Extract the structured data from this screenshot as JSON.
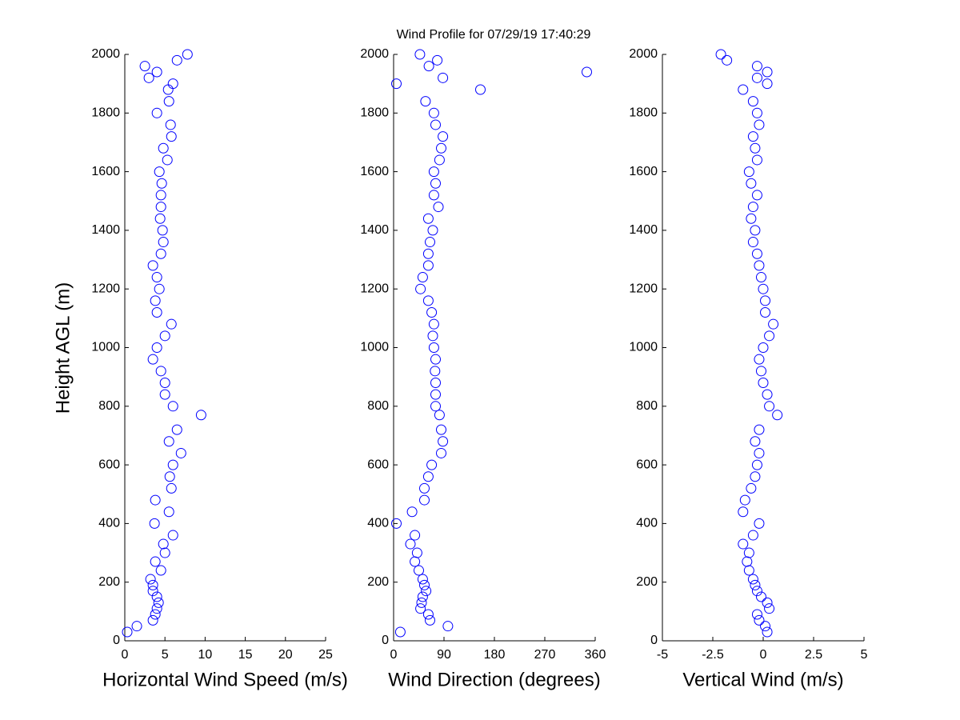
{
  "chart_data": [
    {
      "type": "scatter",
      "title": "Wind Profile for  07/29/19 17:40:29",
      "ylabel": "Height AGL (m)",
      "xlabel": "Horizontal Wind Speed (m/s)",
      "color": "#0000ff",
      "xlim": [
        0,
        25
      ],
      "xticks": [
        0,
        5,
        10,
        15,
        20,
        25
      ],
      "ylim": [
        0,
        2000
      ],
      "yticks": [
        0,
        200,
        400,
        600,
        800,
        1000,
        1200,
        1400,
        1600,
        1800,
        2000
      ],
      "x": [
        0.3,
        1.5,
        3.5,
        3.8,
        4,
        4.2,
        4,
        3.5,
        3.5,
        3.2,
        4.5,
        3.8,
        5,
        4.8,
        6,
        3.7,
        5.5,
        3.8,
        5.8,
        5.6,
        6,
        7,
        5.5,
        6.5,
        9.5,
        6,
        5,
        5,
        4.5,
        3.5,
        4,
        5,
        5.8,
        4,
        3.8,
        4.3,
        4,
        3.5,
        4.5,
        4.8,
        4.7,
        4.4,
        4.5,
        4.5,
        4.6,
        4.3,
        5.3,
        4.8,
        5.8,
        5.7,
        4,
        5.5,
        5.4,
        6,
        3,
        4,
        2.5,
        6.5,
        7.8
      ],
      "y": [
        30,
        50,
        70,
        90,
        110,
        130,
        150,
        170,
        190,
        210,
        240,
        270,
        300,
        330,
        360,
        400,
        440,
        480,
        520,
        560,
        600,
        640,
        680,
        720,
        770,
        800,
        840,
        880,
        920,
        960,
        1000,
        1040,
        1080,
        1120,
        1160,
        1200,
        1240,
        1280,
        1320,
        1360,
        1400,
        1440,
        1480,
        1520,
        1560,
        1600,
        1640,
        1680,
        1720,
        1760,
        1800,
        1840,
        1880,
        1900,
        1920,
        1940,
        1960,
        1980,
        2000
      ]
    },
    {
      "type": "scatter",
      "xlabel": "Wind Direction (degrees)",
      "color": "#0000ff",
      "xlim": [
        0,
        360
      ],
      "xticks": [
        0,
        90,
        180,
        270,
        360
      ],
      "ylim": [
        0,
        2000
      ],
      "yticks": [
        0,
        200,
        400,
        600,
        800,
        1000,
        1200,
        1400,
        1600,
        1800,
        2000
      ],
      "x": [
        12,
        97,
        65,
        62,
        48,
        50,
        52,
        58,
        55,
        52,
        45,
        38,
        42,
        30,
        38,
        5,
        33,
        55,
        55,
        62,
        68,
        85,
        88,
        85,
        82,
        75,
        75,
        75,
        74,
        75,
        72,
        70,
        72,
        68,
        62,
        48,
        52,
        62,
        62,
        65,
        70,
        62,
        80,
        72,
        75,
        72,
        82,
        85,
        88,
        75,
        72,
        57,
        155,
        5,
        88,
        345,
        63,
        78,
        47
      ],
      "y": [
        30,
        50,
        70,
        90,
        110,
        130,
        150,
        170,
        190,
        210,
        240,
        270,
        300,
        330,
        360,
        400,
        440,
        480,
        520,
        560,
        600,
        640,
        680,
        720,
        770,
        800,
        840,
        880,
        920,
        960,
        1000,
        1040,
        1080,
        1120,
        1160,
        1200,
        1240,
        1280,
        1320,
        1360,
        1400,
        1440,
        1480,
        1520,
        1560,
        1600,
        1640,
        1680,
        1720,
        1760,
        1800,
        1840,
        1880,
        1900,
        1920,
        1940,
        1960,
        1980,
        2000
      ]
    },
    {
      "type": "scatter",
      "xlabel": "Vertical Wind (m/s)",
      "color": "#0000ff",
      "xlim": [
        -5,
        5
      ],
      "xticks": [
        -5,
        -2.5,
        0,
        2.5,
        5
      ],
      "ylim": [
        0,
        2000
      ],
      "yticks": [
        0,
        200,
        400,
        600,
        800,
        1000,
        1200,
        1400,
        1600,
        1800,
        2000
      ],
      "x": [
        0.2,
        0.1,
        -0.2,
        -0.3,
        0.3,
        0.2,
        -0.1,
        -0.3,
        -0.4,
        -0.5,
        -0.7,
        -0.8,
        -0.7,
        -1.0,
        -0.5,
        -0.2,
        -1.0,
        -0.9,
        -0.6,
        -0.4,
        -0.3,
        -0.2,
        -0.4,
        -0.2,
        0.7,
        0.3,
        0.2,
        0,
        -0.1,
        -0.2,
        0,
        0.3,
        0.5,
        0.1,
        0.1,
        0,
        -0.1,
        -0.2,
        -0.3,
        -0.5,
        -0.4,
        -0.6,
        -0.5,
        -0.3,
        -0.6,
        -0.7,
        -0.3,
        -0.4,
        -0.5,
        -0.2,
        -0.3,
        -0.5,
        -1,
        0.2,
        -0.3,
        0.2,
        -0.3,
        -1.8,
        -2.1
      ],
      "y": [
        30,
        50,
        70,
        90,
        110,
        130,
        150,
        170,
        190,
        210,
        240,
        270,
        300,
        330,
        360,
        400,
        440,
        480,
        520,
        560,
        600,
        640,
        680,
        720,
        770,
        800,
        840,
        880,
        920,
        960,
        1000,
        1040,
        1080,
        1120,
        1160,
        1200,
        1240,
        1280,
        1320,
        1360,
        1400,
        1440,
        1480,
        1520,
        1560,
        1600,
        1640,
        1680,
        1720,
        1760,
        1800,
        1840,
        1880,
        1900,
        1920,
        1940,
        1960,
        1980,
        2000
      ]
    }
  ]
}
